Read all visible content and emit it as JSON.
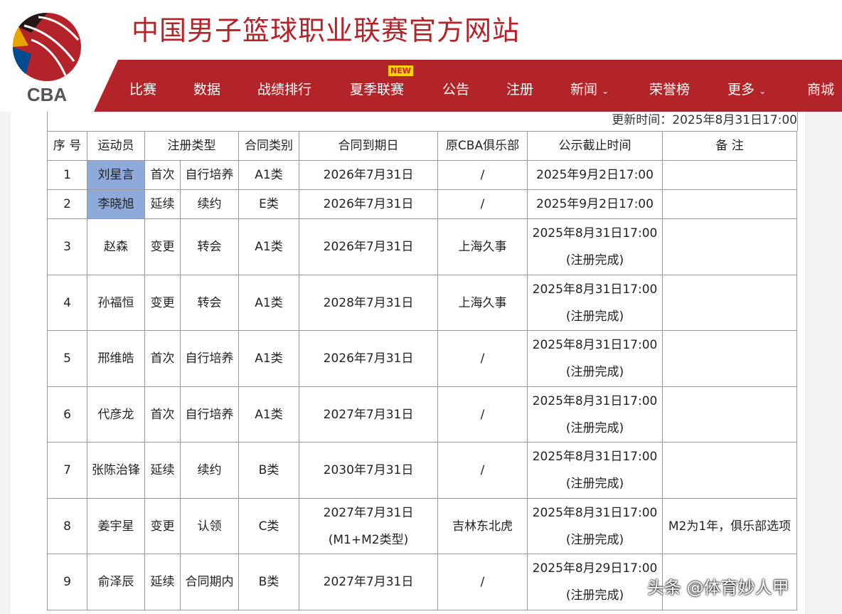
{
  "site": {
    "title": "中国男子篮球职业联赛官方网站",
    "logo_text": "CBA"
  },
  "nav": {
    "items": [
      "比赛",
      "数据",
      "战绩排行",
      "夏季联赛",
      "公告",
      "注册",
      "新闻",
      "荣誉榜",
      "更多",
      "商城"
    ],
    "new_badge": "NEW"
  },
  "update_time": "更新时间：2025年8月31日17:00",
  "table": {
    "headers": [
      "序 号",
      "运动员",
      "注册类型",
      "",
      "合同类别",
      "合同到期日",
      "原CBA俱乐部",
      "公示截止时间",
      "备 注"
    ],
    "rows": [
      {
        "no": "1",
        "name": "刘星言",
        "t1": "首次",
        "t2": "自行培养",
        "cls": "A1类",
        "exp": "2026年7月31日",
        "exp2": "",
        "club": "/",
        "dl": "2025年9月2日17:00",
        "dl2": "",
        "note": "",
        "hl": true
      },
      {
        "no": "2",
        "name": "李晓旭",
        "t1": "延续",
        "t2": "续约",
        "cls": "E类",
        "exp": "2026年7月31日",
        "exp2": "",
        "club": "/",
        "dl": "2025年9月2日17:00",
        "dl2": "",
        "note": "",
        "hl": true
      },
      {
        "no": "3",
        "name": "赵森",
        "t1": "变更",
        "t2": "转会",
        "cls": "A1类",
        "exp": "2026年7月31日",
        "exp2": "",
        "club": "上海久事",
        "dl": "2025年8月31日17:00",
        "dl2": "(注册完成)",
        "note": ""
      },
      {
        "no": "4",
        "name": "孙福恒",
        "t1": "变更",
        "t2": "转会",
        "cls": "A1类",
        "exp": "2028年7月31日",
        "exp2": "",
        "club": "上海久事",
        "dl": "2025年8月31日17:00",
        "dl2": "(注册完成)",
        "note": ""
      },
      {
        "no": "5",
        "name": "邢维皓",
        "t1": "首次",
        "t2": "自行培养",
        "cls": "A1类",
        "exp": "2026年7月31日",
        "exp2": "",
        "club": "/",
        "dl": "2025年8月31日17:00",
        "dl2": "(注册完成)",
        "note": ""
      },
      {
        "no": "6",
        "name": "代彦龙",
        "t1": "首次",
        "t2": "自行培养",
        "cls": "A1类",
        "exp": "2027年7月31日",
        "exp2": "",
        "club": "/",
        "dl": "2025年8月31日17:00",
        "dl2": "(注册完成)",
        "note": ""
      },
      {
        "no": "7",
        "name": "张陈治锋",
        "t1": "延续",
        "t2": "续约",
        "cls": "B类",
        "exp": "2030年7月31日",
        "exp2": "",
        "club": "/",
        "dl": "2025年8月31日17:00",
        "dl2": "(注册完成)",
        "note": ""
      },
      {
        "no": "8",
        "name": "姜宇星",
        "t1": "变更",
        "t2": "认领",
        "cls": "C类",
        "exp": "2027年7月31日",
        "exp2": "(M1+M2类型)",
        "club": "吉林东北虎",
        "dl": "2025年8月31日17:00",
        "dl2": "(注册完成)",
        "note": "M2为1年，俱乐部选项"
      },
      {
        "no": "9",
        "name": "俞泽辰",
        "t1": "延续",
        "t2": "合同期内",
        "cls": "B类",
        "exp": "2027年7月31日",
        "exp2": "",
        "club": "/",
        "dl": "2025年8月29日17:00",
        "dl2": "(注册完成)",
        "note": ""
      }
    ]
  },
  "watermark": "头条 @体育妙人甲",
  "colors": {
    "brand_red": "#b22427",
    "highlight": "#8eaadb",
    "badge": "#ffd200"
  }
}
